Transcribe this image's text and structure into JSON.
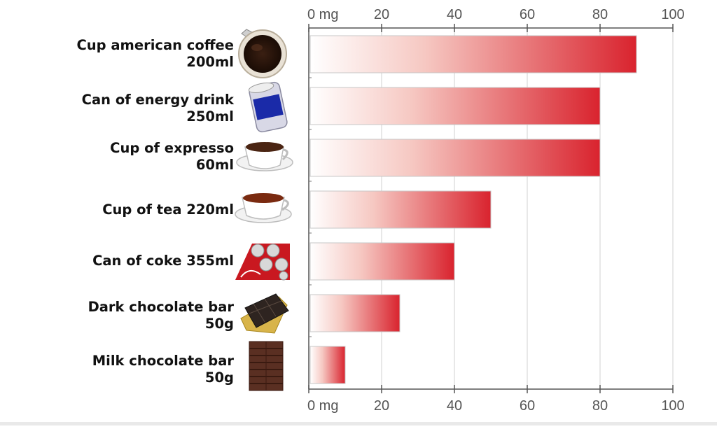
{
  "chart_data": {
    "type": "bar",
    "orientation": "horizontal",
    "unit_label": "0 mg",
    "xlim": [
      0,
      100
    ],
    "ticks": [
      0,
      20,
      40,
      60,
      80,
      100
    ],
    "tick_labels": [
      "0 mg",
      "20",
      "40",
      "60",
      "80",
      "100"
    ],
    "categories": [
      "Cup american coffee\n200ml",
      "Can of energy drink\n250ml",
      "Cup of expresso\n60ml",
      "Cup of tea 220ml",
      "Can of coke 355ml",
      "Dark chocolate bar\n50g",
      "Milk chocolate bar\n50g"
    ],
    "values": [
      90,
      80,
      80,
      50,
      40,
      25,
      10
    ],
    "icons": [
      "coffee-cup-icon",
      "energy-drink-can-icon",
      "espresso-cup-icon",
      "tea-cup-icon",
      "coke-cans-icon",
      "dark-chocolate-icon",
      "milk-chocolate-icon"
    ],
    "bar_gradient": [
      "#ffffff",
      "#d9232e"
    ],
    "grid": true,
    "axis_top": true,
    "axis_bottom": true
  }
}
